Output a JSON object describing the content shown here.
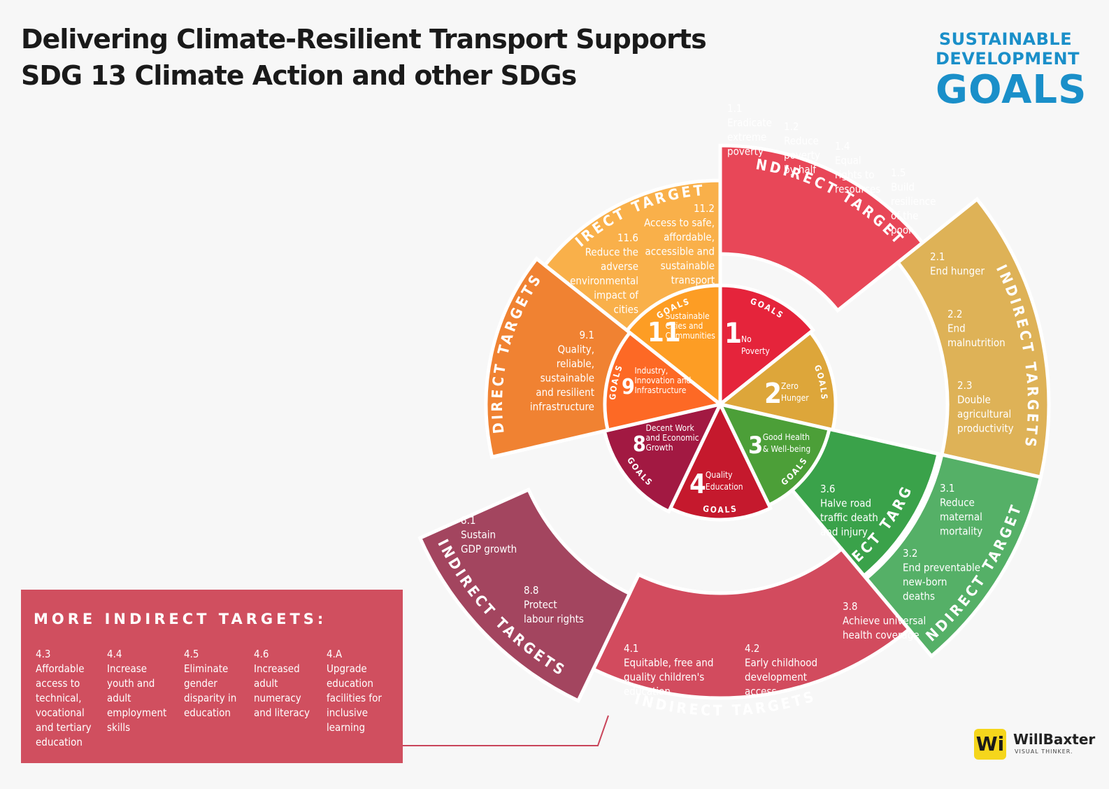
{
  "title": {
    "line1": "Delivering Climate-Resilient Transport Supports",
    "line2": "SDG 13 Climate Action and other SDGs"
  },
  "sdg_logo": {
    "line1": "SUSTAINABLE",
    "line2": "DEVELOPMENT",
    "line3": "GOALS"
  },
  "goals_label": "GOALS",
  "goals": [
    {
      "number": "1",
      "lines": [
        "No",
        "Poverty"
      ],
      "color": "#e5243b"
    },
    {
      "number": "2",
      "lines": [
        "Zero",
        "Hunger"
      ],
      "color": "#dda63a"
    },
    {
      "number": "3",
      "lines": [
        "Good Health",
        "& Well-being"
      ],
      "color": "#4c9f38"
    },
    {
      "number": "4",
      "lines": [
        "Quality",
        "Education"
      ],
      "color": "#c5192d"
    },
    {
      "number": "8",
      "lines": [
        "Decent Work",
        "and Economic",
        "Growth"
      ],
      "color": "#a21942"
    },
    {
      "number": "9",
      "lines": [
        "Industry,",
        "Innovation and",
        "Infrastructure"
      ],
      "color": "#fd6925"
    },
    {
      "number": "11",
      "lines": [
        "Sustainable",
        "Cities and",
        "Communities"
      ],
      "color": "#fd9d24"
    }
  ],
  "ring_labels": {
    "direct": "DIRECT TARGETS",
    "indirect": "INDIRECT TARGETS"
  },
  "targets": {
    "goal1": [
      {
        "code": "1.1",
        "lines": [
          "Eradicate",
          "extreme",
          "poverty"
        ]
      },
      {
        "code": "1.2",
        "lines": [
          "Reduce",
          "poverty",
          "by half"
        ]
      },
      {
        "code": "1.4",
        "lines": [
          "Equal",
          "rights to",
          "resources"
        ]
      },
      {
        "code": "1.5",
        "lines": [
          "Build",
          "resilience",
          "of the",
          "poor"
        ]
      }
    ],
    "goal2": [
      {
        "code": "2.1",
        "lines": [
          "End hunger"
        ]
      },
      {
        "code": "2.2",
        "lines": [
          "End",
          "malnutrition"
        ]
      },
      {
        "code": "2.3",
        "lines": [
          "Double",
          "agricultural",
          "productivity"
        ]
      }
    ],
    "goal3_direct": [
      {
        "code": "3.6",
        "lines": [
          "Halve road",
          "traffic death",
          "and injury"
        ]
      }
    ],
    "goal3_indirect": [
      {
        "code": "3.1",
        "lines": [
          "Reduce",
          "maternal",
          "mortality"
        ]
      },
      {
        "code": "3.2",
        "lines": [
          "End preventable",
          "new-born",
          "deaths"
        ]
      },
      {
        "code": "3.8",
        "lines": [
          "Achieve universal",
          "health coverage"
        ]
      }
    ],
    "goal4": [
      {
        "code": "4.1",
        "lines": [
          "Equitable, free and",
          "quality children's",
          "education"
        ]
      },
      {
        "code": "4.2",
        "lines": [
          "Early childhood",
          "development",
          "access"
        ]
      }
    ],
    "goal8": [
      {
        "code": "8.1",
        "lines": [
          "Sustain",
          "GDP growth"
        ]
      },
      {
        "code": "8.8",
        "lines": [
          "Protect",
          "labour rights"
        ]
      }
    ],
    "goal9": [
      {
        "code": "9.1",
        "lines": [
          "Quality,",
          "reliable,",
          "sustainable",
          "and resilient",
          "infrastructure"
        ]
      }
    ],
    "goal11": [
      {
        "code": "11.2",
        "lines": [
          "Access to safe,",
          "affordable,",
          "accessible and",
          "sustainable",
          "transport"
        ]
      },
      {
        "code": "11.6",
        "lines": [
          "Reduce the",
          "adverse",
          "environmental",
          "impact of",
          "cities"
        ]
      }
    ]
  },
  "more_targets": {
    "title": "MORE INDIRECT TARGETS:",
    "items": [
      {
        "text": "4.3\nAffordable\naccess to\ntechnical,\nvocational\nand tertiary\neducation"
      },
      {
        "text": "4.4\nIncrease\nyouth and\nadult\nemployment\nskills"
      },
      {
        "text": "4.5\nEliminate\ngender\ndisparity in\neducation"
      },
      {
        "text": "4.6\nIncreased\nadult\nnumeracy\nand literacy"
      },
      {
        "text": "4.A\nUpgrade\neducation\nfacilities for\ninclusive\nlearning"
      }
    ]
  },
  "author": {
    "mark": "Wi",
    "name": "WillBaxter",
    "tagline": "VISUAL THINKER."
  },
  "colors": {
    "goal1_outer": "#e84758",
    "goal2_outer": "#deb257",
    "goal3_direct": "#3aa24a",
    "goal3_indirect": "#55b067",
    "goal4_outer": "#d24b5e",
    "goal8_outer": "#a3455f",
    "goal9_outer": "#f08232",
    "goal11_outer": "#f9b04a",
    "more_box": "#d04f5f",
    "sdg_blue": "#1a8fc9"
  }
}
